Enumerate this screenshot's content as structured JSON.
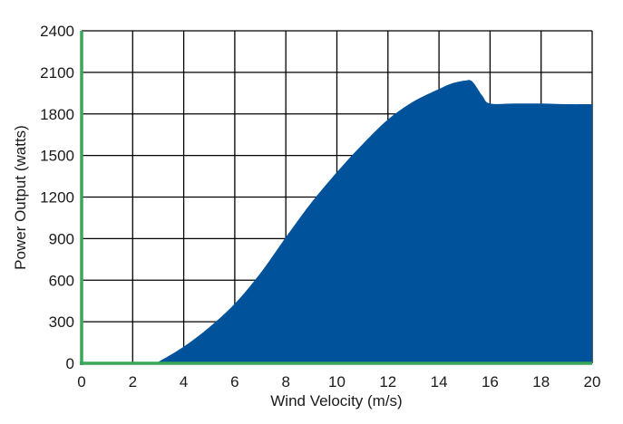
{
  "chart_data": {
    "type": "area",
    "title": "",
    "xlabel": "Wind Velocity (m/s)",
    "ylabel": "Power Output (watts)",
    "xlim": [
      0,
      20
    ],
    "ylim": [
      0,
      2400
    ],
    "x_ticks": [
      0,
      2,
      4,
      6,
      8,
      10,
      12,
      14,
      16,
      18,
      20
    ],
    "y_ticks": [
      0,
      300,
      600,
      900,
      1200,
      1500,
      1800,
      2100,
      2400
    ],
    "grid": true,
    "legend": null,
    "series": [
      {
        "name": "Power Output",
        "color": "#00529b",
        "x": [
          0,
          2,
          2.8,
          3,
          4,
          5,
          6,
          7,
          8,
          9,
          10,
          11,
          12,
          13,
          14,
          14.5,
          15,
          15.3,
          15.7,
          16,
          17,
          18,
          19,
          20
        ],
        "values": [
          0,
          0,
          0,
          10,
          120,
          260,
          430,
          650,
          910,
          1160,
          1380,
          1580,
          1760,
          1890,
          1980,
          2020,
          2040,
          2035,
          1930,
          1875,
          1875,
          1875,
          1870,
          1870
        ]
      }
    ],
    "colors": {
      "fill": "#00529b",
      "axis": "#3aa65a",
      "grid": "#000000"
    }
  }
}
